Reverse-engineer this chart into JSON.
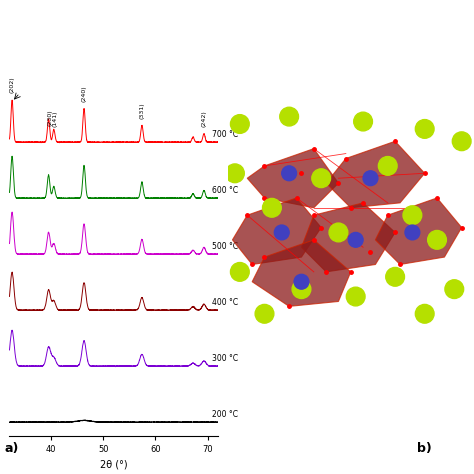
{
  "background_color": "#ffffff",
  "temperatures": [
    "700 °C",
    "600 °C",
    "500 °C",
    "400 °C",
    "300 °C",
    "200 °C"
  ],
  "colors": [
    "red",
    "#008000",
    "#cc00cc",
    "#8b0000",
    "#7b00d4",
    "black"
  ],
  "offsets": [
    5.0,
    4.0,
    3.0,
    2.0,
    1.0,
    0.0
  ],
  "xlabel": "2θ (°)",
  "xlim": [
    32,
    72
  ],
  "x_ticks": [
    40,
    50,
    60,
    70
  ],
  "panel_a_label": "a)",
  "panel_b_label": "b)",
  "peak_labels": [
    "(202)",
    "(230)",
    "(141)",
    "(240)",
    "(331)",
    "(242)"
  ],
  "spectra_peaks_700": [
    32.5,
    39.5,
    40.5,
    46.3,
    57.4,
    67.2,
    69.3
  ],
  "spectra_widths_700": [
    0.22,
    0.22,
    0.22,
    0.22,
    0.22,
    0.22,
    0.22
  ],
  "spectra_heights_700": [
    1.0,
    0.55,
    0.3,
    0.8,
    0.4,
    0.12,
    0.2
  ],
  "spectra_peaks_600": [
    32.5,
    39.5,
    40.5,
    46.3,
    57.4,
    67.2,
    69.3
  ],
  "spectra_widths_600": [
    0.25,
    0.25,
    0.25,
    0.25,
    0.25,
    0.25,
    0.25
  ],
  "spectra_heights_600": [
    1.0,
    0.55,
    0.28,
    0.78,
    0.38,
    0.1,
    0.18
  ],
  "spectra_peaks_500": [
    32.5,
    39.5,
    40.5,
    46.3,
    57.4,
    67.2,
    69.3
  ],
  "spectra_widths_500": [
    0.3,
    0.3,
    0.3,
    0.3,
    0.3,
    0.3,
    0.3
  ],
  "spectra_heights_500": [
    1.0,
    0.52,
    0.25,
    0.72,
    0.35,
    0.09,
    0.16
  ],
  "spectra_peaks_400": [
    32.5,
    39.5,
    40.5,
    46.3,
    57.4,
    67.2,
    69.3
  ],
  "spectra_widths_400": [
    0.35,
    0.35,
    0.35,
    0.35,
    0.35,
    0.35,
    0.35
  ],
  "spectra_heights_400": [
    0.9,
    0.48,
    0.22,
    0.65,
    0.3,
    0.08,
    0.14
  ],
  "spectra_peaks_300": [
    32.5,
    39.5,
    40.5,
    46.3,
    57.4,
    67.2,
    69.3
  ],
  "spectra_widths_300": [
    0.4,
    0.4,
    0.4,
    0.4,
    0.4,
    0.4,
    0.4
  ],
  "spectra_heights_300": [
    0.85,
    0.45,
    0.2,
    0.6,
    0.28,
    0.07,
    0.12
  ],
  "spectra_peaks_200": [
    46.3
  ],
  "spectra_widths_200": [
    1.2
  ],
  "spectra_heights_200": [
    0.04
  ]
}
